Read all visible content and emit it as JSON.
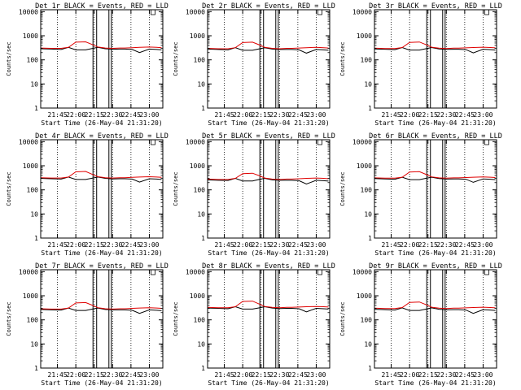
{
  "figure": {
    "background": "#ffffff",
    "axis_color": "#000000"
  },
  "chart_data": [
    {
      "type": "line",
      "title": "Det 1r BLACK = Events, RED = LLD",
      "xlabel": "Start Time (26-May-04 21:31:20)",
      "ylabel": "Counts/sec",
      "x_scale": "time",
      "y_scale": "log",
      "xlim": [
        "21:31:20",
        "23:11"
      ],
      "ylim": [
        1,
        12000
      ],
      "x_ticks": [
        "21:45",
        "22:00",
        "22:15",
        "22:30",
        "22:45",
        "23:00"
      ],
      "y_ticks": [
        "1",
        "10",
        "100",
        "1000",
        "10000"
      ],
      "vlines_dotted": [
        "21:45",
        "22:00",
        "22:15",
        "22:30",
        "22:45",
        "23:00"
      ],
      "vlines_solid": [
        "22:14",
        "22:17",
        "22:27",
        "22:29"
      ],
      "x": [
        "21:31",
        "21:40",
        "21:48",
        "21:54",
        "22:00",
        "22:08",
        "22:14",
        "22:18",
        "22:24",
        "22:30",
        "22:36",
        "22:40",
        "22:46",
        "22:52",
        "23:00",
        "23:06",
        "23:10"
      ],
      "series": [
        {
          "color": "#000000",
          "values": [
            290,
            280,
            270,
            330,
            260,
            260,
            300,
            330,
            290,
            275,
            280,
            280,
            270,
            200,
            280,
            270,
            260
          ]
        },
        {
          "color": "#e00000",
          "values": [
            310,
            300,
            300,
            330,
            540,
            560,
            420,
            340,
            310,
            300,
            310,
            310,
            320,
            330,
            340,
            330,
            320
          ]
        }
      ]
    },
    {
      "type": "line",
      "title": "Det 2r BLACK = Events, RED = LLD",
      "xlabel": "Start Time (26-May-04 21:31:20)",
      "ylabel": "Counts/sec",
      "x_scale": "time",
      "y_scale": "log",
      "xlim": [
        "21:31:20",
        "23:11"
      ],
      "ylim": [
        1,
        12000
      ],
      "x_ticks": [
        "21:45",
        "22:00",
        "22:15",
        "22:30",
        "22:45",
        "23:00"
      ],
      "y_ticks": [
        "1",
        "10",
        "100",
        "1000",
        "10000"
      ],
      "vlines_dotted": [
        "21:45",
        "22:00",
        "22:15",
        "22:30",
        "22:45",
        "23:00"
      ],
      "vlines_solid": [
        "22:14",
        "22:17",
        "22:27",
        "22:29"
      ],
      "x": [
        "21:31",
        "21:40",
        "21:48",
        "21:54",
        "22:00",
        "22:08",
        "22:14",
        "22:18",
        "22:24",
        "22:30",
        "22:36",
        "22:40",
        "22:46",
        "22:52",
        "23:00",
        "23:06",
        "23:10"
      ],
      "series": [
        {
          "color": "#000000",
          "values": [
            280,
            270,
            260,
            320,
            250,
            250,
            290,
            320,
            280,
            270,
            270,
            270,
            260,
            190,
            270,
            260,
            250
          ]
        },
        {
          "color": "#e00000",
          "values": [
            300,
            290,
            290,
            320,
            520,
            540,
            410,
            330,
            300,
            290,
            300,
            300,
            310,
            320,
            330,
            320,
            310
          ]
        }
      ]
    },
    {
      "type": "line",
      "title": "Det 3r BLACK = Events, RED = LLD",
      "xlabel": "Start Time (26-May-04 21:31:20)",
      "ylabel": "Counts/sec",
      "x_scale": "time",
      "y_scale": "log",
      "xlim": [
        "21:31:20",
        "23:11"
      ],
      "ylim": [
        1,
        12000
      ],
      "x_ticks": [
        "21:45",
        "22:00",
        "22:15",
        "22:30",
        "22:45",
        "23:00"
      ],
      "y_ticks": [
        "1",
        "10",
        "100",
        "1000",
        "10000"
      ],
      "vlines_dotted": [
        "21:45",
        "22:00",
        "22:15",
        "22:30",
        "22:45",
        "23:00"
      ],
      "vlines_solid": [
        "22:14",
        "22:17",
        "22:27",
        "22:29"
      ],
      "x": [
        "21:31",
        "21:40",
        "21:48",
        "21:54",
        "22:00",
        "22:08",
        "22:14",
        "22:18",
        "22:24",
        "22:30",
        "22:36",
        "22:40",
        "22:46",
        "22:52",
        "23:00",
        "23:06",
        "23:10"
      ],
      "series": [
        {
          "color": "#000000",
          "values": [
            285,
            275,
            265,
            325,
            255,
            255,
            295,
            325,
            285,
            272,
            275,
            275,
            265,
            195,
            275,
            265,
            255
          ]
        },
        {
          "color": "#e00000",
          "values": [
            305,
            295,
            295,
            325,
            530,
            550,
            415,
            335,
            305,
            295,
            305,
            305,
            315,
            325,
            335,
            325,
            315
          ]
        }
      ]
    },
    {
      "type": "line",
      "title": "Det 4r BLACK = Events, RED = LLD",
      "xlabel": "Start Time (26-May-04 21:31:20)",
      "ylabel": "Counts/sec",
      "x_scale": "time",
      "y_scale": "log",
      "xlim": [
        "21:31:20",
        "23:11"
      ],
      "ylim": [
        1,
        12000
      ],
      "x_ticks": [
        "21:45",
        "22:00",
        "22:15",
        "22:30",
        "22:45",
        "23:00"
      ],
      "y_ticks": [
        "1",
        "10",
        "100",
        "1000",
        "10000"
      ],
      "vlines_dotted": [
        "21:45",
        "22:00",
        "22:15",
        "22:30",
        "22:45",
        "23:00"
      ],
      "vlines_solid": [
        "22:14",
        "22:17",
        "22:27",
        "22:29"
      ],
      "x": [
        "21:31",
        "21:40",
        "21:48",
        "21:54",
        "22:00",
        "22:08",
        "22:14",
        "22:18",
        "22:24",
        "22:30",
        "22:36",
        "22:40",
        "22:46",
        "22:52",
        "23:00",
        "23:06",
        "23:10"
      ],
      "series": [
        {
          "color": "#000000",
          "values": [
            300,
            290,
            280,
            340,
            270,
            270,
            310,
            340,
            300,
            285,
            290,
            290,
            280,
            210,
            290,
            280,
            270
          ]
        },
        {
          "color": "#e00000",
          "values": [
            320,
            310,
            310,
            340,
            560,
            580,
            430,
            350,
            320,
            310,
            320,
            320,
            330,
            340,
            350,
            340,
            330
          ]
        }
      ]
    },
    {
      "type": "line",
      "title": "Det 5r BLACK = Events, RED = LLD",
      "xlabel": "Start Time (26-May-04 21:31:20)",
      "ylabel": "Counts/sec",
      "x_scale": "time",
      "y_scale": "log",
      "xlim": [
        "21:31:20",
        "23:11"
      ],
      "ylim": [
        1,
        12000
      ],
      "x_ticks": [
        "21:45",
        "22:00",
        "22:15",
        "22:30",
        "22:45",
        "23:00"
      ],
      "y_ticks": [
        "1",
        "10",
        "100",
        "1000",
        "10000"
      ],
      "vlines_dotted": [
        "21:45",
        "22:00",
        "22:15",
        "22:30",
        "22:45",
        "23:00"
      ],
      "vlines_solid": [
        "22:14",
        "22:17",
        "22:27",
        "22:29"
      ],
      "x": [
        "21:31",
        "21:40",
        "21:48",
        "21:54",
        "22:00",
        "22:08",
        "22:14",
        "22:18",
        "22:24",
        "22:30",
        "22:36",
        "22:40",
        "22:46",
        "22:52",
        "23:00",
        "23:06",
        "23:10"
      ],
      "series": [
        {
          "color": "#000000",
          "values": [
            260,
            250,
            245,
            300,
            235,
            235,
            275,
            300,
            260,
            250,
            250,
            250,
            240,
            175,
            250,
            240,
            230
          ]
        },
        {
          "color": "#e00000",
          "values": [
            280,
            270,
            270,
            300,
            470,
            490,
            380,
            310,
            280,
            270,
            280,
            280,
            290,
            300,
            310,
            300,
            290
          ]
        }
      ]
    },
    {
      "type": "line",
      "title": "Det 6r BLACK = Events, RED = LLD",
      "xlabel": "Start Time (26-May-04 21:31:20)",
      "ylabel": "Counts/sec",
      "x_scale": "time",
      "y_scale": "log",
      "xlim": [
        "21:31:20",
        "23:11"
      ],
      "ylim": [
        1,
        12000
      ],
      "x_ticks": [
        "21:45",
        "22:00",
        "22:15",
        "22:30",
        "22:45",
        "23:00"
      ],
      "y_ticks": [
        "1",
        "10",
        "100",
        "1000",
        "10000"
      ],
      "vlines_dotted": [
        "21:45",
        "22:00",
        "22:15",
        "22:30",
        "22:45",
        "23:00"
      ],
      "vlines_solid": [
        "22:14",
        "22:17",
        "22:27",
        "22:29"
      ],
      "x": [
        "21:31",
        "21:40",
        "21:48",
        "21:54",
        "22:00",
        "22:08",
        "22:14",
        "22:18",
        "22:24",
        "22:30",
        "22:36",
        "22:40",
        "22:46",
        "22:52",
        "23:00",
        "23:06",
        "23:10"
      ],
      "series": [
        {
          "color": "#000000",
          "values": [
            295,
            285,
            275,
            335,
            265,
            265,
            305,
            335,
            295,
            280,
            285,
            285,
            275,
            205,
            285,
            275,
            265
          ]
        },
        {
          "color": "#e00000",
          "values": [
            315,
            305,
            305,
            335,
            550,
            570,
            425,
            345,
            315,
            305,
            315,
            315,
            325,
            335,
            345,
            335,
            325
          ]
        }
      ]
    },
    {
      "type": "line",
      "title": "Det 7r BLACK = Events, RED = LLD",
      "xlabel": "Start Time (26-May-04 21:31:20)",
      "ylabel": "Counts/sec",
      "x_scale": "time",
      "y_scale": "log",
      "xlim": [
        "21:31:20",
        "23:11"
      ],
      "ylim": [
        1,
        12000
      ],
      "x_ticks": [
        "21:45",
        "22:00",
        "22:15",
        "22:30",
        "22:45",
        "23:00"
      ],
      "y_ticks": [
        "1",
        "10",
        "100",
        "1000",
        "10000"
      ],
      "vlines_dotted": [
        "21:45",
        "22:00",
        "22:15",
        "22:30",
        "22:45",
        "23:00"
      ],
      "vlines_solid": [
        "22:14",
        "22:17",
        "22:27",
        "22:29"
      ],
      "x": [
        "21:31",
        "21:40",
        "21:48",
        "21:54",
        "22:00",
        "22:08",
        "22:14",
        "22:18",
        "22:24",
        "22:30",
        "22:36",
        "22:40",
        "22:46",
        "22:52",
        "23:00",
        "23:06",
        "23:10"
      ],
      "series": [
        {
          "color": "#000000",
          "values": [
            270,
            260,
            255,
            310,
            245,
            245,
            285,
            310,
            270,
            260,
            260,
            260,
            250,
            185,
            260,
            250,
            240
          ]
        },
        {
          "color": "#e00000",
          "values": [
            290,
            280,
            280,
            310,
            500,
            520,
            395,
            320,
            290,
            280,
            290,
            290,
            300,
            310,
            320,
            310,
            300
          ]
        }
      ]
    },
    {
      "type": "line",
      "title": "Det 8r BLACK = Events, RED = LLD",
      "xlabel": "Start Time (26-May-04 21:31:20)",
      "ylabel": "Counts/sec",
      "x_scale": "time",
      "y_scale": "log",
      "xlim": [
        "21:31:20",
        "23:11"
      ],
      "ylim": [
        1,
        12000
      ],
      "x_ticks": [
        "21:45",
        "22:00",
        "22:15",
        "22:30",
        "22:45",
        "23:00"
      ],
      "y_ticks": [
        "1",
        "10",
        "100",
        "1000",
        "10000"
      ],
      "vlines_dotted": [
        "21:45",
        "22:00",
        "22:15",
        "22:30",
        "22:45",
        "23:00"
      ],
      "vlines_solid": [
        "22:14",
        "22:17",
        "22:27",
        "22:29"
      ],
      "x": [
        "21:31",
        "21:40",
        "21:48",
        "21:54",
        "22:00",
        "22:08",
        "22:14",
        "22:18",
        "22:24",
        "22:30",
        "22:36",
        "22:40",
        "22:46",
        "22:52",
        "23:00",
        "23:06",
        "23:10"
      ],
      "series": [
        {
          "color": "#000000",
          "values": [
            310,
            300,
            290,
            350,
            280,
            280,
            320,
            350,
            310,
            295,
            300,
            300,
            290,
            215,
            300,
            290,
            280
          ]
        },
        {
          "color": "#e00000",
          "values": [
            330,
            320,
            320,
            350,
            580,
            600,
            440,
            360,
            330,
            320,
            330,
            330,
            340,
            350,
            360,
            350,
            340
          ]
        }
      ]
    },
    {
      "type": "line",
      "title": "Det 9r BLACK = Events, RED = LLD",
      "xlabel": "Start Time (26-May-04 21:31:20)",
      "ylabel": "Counts/sec",
      "x_scale": "time",
      "y_scale": "log",
      "xlim": [
        "21:31:20",
        "23:11"
      ],
      "ylim": [
        1,
        12000
      ],
      "x_ticks": [
        "21:45",
        "22:00",
        "22:15",
        "22:30",
        "22:45",
        "23:00"
      ],
      "y_ticks": [
        "1",
        "10",
        "100",
        "1000",
        "10000"
      ],
      "vlines_dotted": [
        "21:45",
        "22:00",
        "22:15",
        "22:30",
        "22:45",
        "23:00"
      ],
      "vlines_solid": [
        "22:14",
        "22:17",
        "22:27",
        "22:29"
      ],
      "x": [
        "21:31",
        "21:40",
        "21:48",
        "21:54",
        "22:00",
        "22:08",
        "22:14",
        "22:18",
        "22:24",
        "22:30",
        "22:36",
        "22:40",
        "22:46",
        "22:52",
        "23:00",
        "23:06",
        "23:10"
      ],
      "series": [
        {
          "color": "#000000",
          "values": [
            275,
            265,
            255,
            315,
            245,
            245,
            285,
            315,
            275,
            262,
            265,
            265,
            255,
            185,
            265,
            255,
            245
          ]
        },
        {
          "color": "#e00000",
          "values": [
            305,
            295,
            295,
            325,
            530,
            550,
            415,
            335,
            305,
            295,
            305,
            305,
            315,
            325,
            335,
            325,
            315
          ]
        }
      ]
    }
  ]
}
